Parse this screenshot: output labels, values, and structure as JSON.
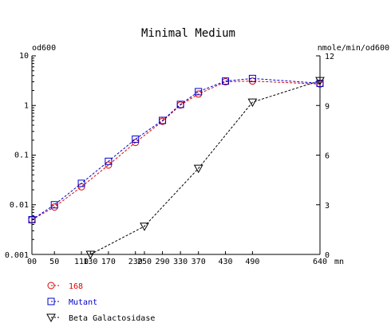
{
  "chart_data": {
    "type": "line",
    "title": "Minimal Medium",
    "x_unit_label": "mn",
    "left_axis_label": "od600",
    "right_axis_label": "nmole/min/od600",
    "left_axis_scale": "log",
    "ylim_left": [
      0.001,
      10
    ],
    "ylim_right": [
      0,
      12
    ],
    "xlim": [
      0,
      640
    ],
    "x_ticks": [
      0,
      50,
      110,
      130,
      170,
      230,
      250,
      290,
      330,
      370,
      430,
      490,
      640
    ],
    "x_tick_labels": [
      "00",
      "50",
      "110",
      "130",
      "170",
      "230",
      "250",
      "290",
      "330",
      "370",
      "430",
      "490",
      "640"
    ],
    "y_left_ticks": [
      0.001,
      0.01,
      0.1,
      1,
      10
    ],
    "y_left_tick_labels": [
      "0.001",
      "0.01",
      "0.1",
      "1",
      "10"
    ],
    "y_right_ticks": [
      0,
      3,
      6,
      9,
      12
    ],
    "y_right_tick_labels": [
      "0",
      "3",
      "6",
      "9",
      "12"
    ],
    "grid": false,
    "legend_position": "bottom-left",
    "series": [
      {
        "name": "168",
        "axis": "left",
        "marker": "circle",
        "color": "#dd0000",
        "x": [
          0,
          50,
          110,
          170,
          230,
          290,
          330,
          370,
          430,
          490,
          640
        ],
        "y": [
          0.005,
          0.009,
          0.023,
          0.063,
          0.18,
          0.48,
          1.02,
          1.7,
          3.0,
          3.1,
          2.7
        ]
      },
      {
        "name": "Mutant",
        "axis": "left",
        "marker": "square",
        "color": "#0000cc",
        "x": [
          0,
          50,
          110,
          170,
          230,
          290,
          330,
          370,
          430,
          490,
          640
        ],
        "y": [
          0.005,
          0.01,
          0.027,
          0.075,
          0.21,
          0.5,
          1.05,
          1.9,
          3.1,
          3.5,
          2.8
        ]
      },
      {
        "name": "Beta Galactosidase",
        "axis": "right",
        "marker": "triangle-down",
        "color": "#000000",
        "x": [
          130,
          250,
          370,
          490,
          640
        ],
        "y": [
          0,
          1.7,
          5.2,
          9.2,
          10.5
        ]
      }
    ]
  }
}
